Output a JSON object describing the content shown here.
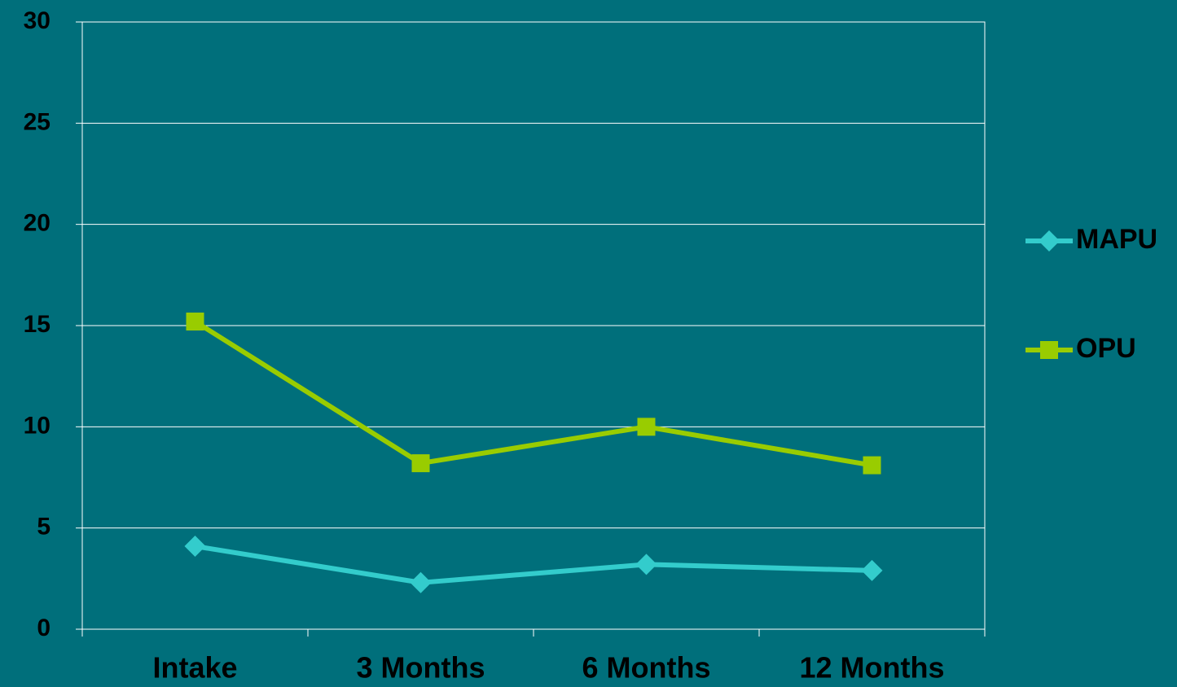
{
  "chart_data": {
    "type": "line",
    "categories": [
      "Intake",
      "3 Months",
      "6 Months",
      "12 Months"
    ],
    "series": [
      {
        "name": "MAPU",
        "color": "#33cccc",
        "marker": "diamond",
        "values": [
          4.1,
          2.3,
          3.2,
          2.9
        ]
      },
      {
        "name": "OPU",
        "color": "#99cc00",
        "marker": "square",
        "values": [
          15.2,
          8.2,
          10.0,
          8.1
        ]
      }
    ],
    "ylim": [
      0,
      30
    ],
    "yticks": [
      0,
      5,
      10,
      15,
      20,
      25,
      30
    ],
    "grid": true,
    "legend": "right"
  }
}
